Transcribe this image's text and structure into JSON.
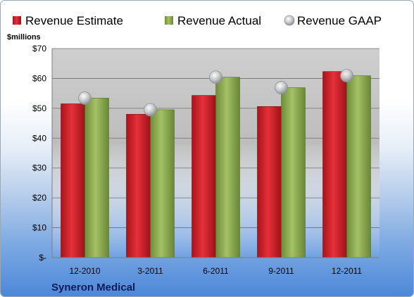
{
  "chart_data": {
    "type": "bar",
    "units_label": "$millions",
    "company": "Syneron Medical",
    "categories": [
      "12-2010",
      "3-2011",
      "6-2011",
      "9-2011",
      "12-2011"
    ],
    "series": [
      {
        "name": "Revenue Estimate",
        "kind": "bar",
        "color": "#d9242c",
        "values": [
          51.5,
          48.0,
          54.3,
          50.6,
          62.3
        ]
      },
      {
        "name": "Revenue Actual",
        "kind": "bar",
        "color": "#8fae52",
        "values": [
          53.4,
          49.5,
          60.4,
          56.9,
          60.9
        ]
      },
      {
        "name": "Revenue GAAP",
        "kind": "marker",
        "color": "#c4c6ca",
        "values": [
          53.4,
          49.5,
          60.4,
          56.9,
          60.9
        ]
      }
    ],
    "ylim": [
      0,
      70
    ],
    "yticks": [
      0,
      10,
      20,
      30,
      40,
      50,
      60,
      70
    ],
    "ytick_labels": [
      "$-",
      "$10",
      "$20",
      "$30",
      "$40",
      "$50",
      "$60",
      "$70"
    ],
    "grid": true,
    "legend_position": "top"
  }
}
